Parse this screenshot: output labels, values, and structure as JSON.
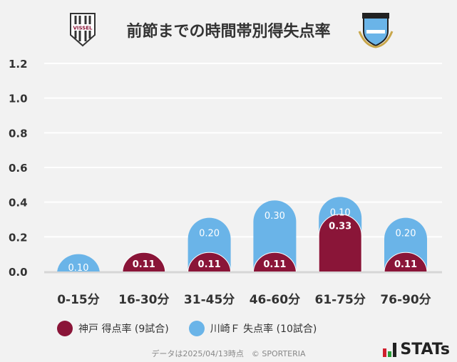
{
  "title": "前節までの時間帯別得失点率",
  "logos": {
    "left": "VISSEL",
    "right": "KAWASAKI FRONTALE"
  },
  "colors": {
    "kobe": "#8a1538",
    "kawasaki": "#6ab4e8"
  },
  "chart_data": {
    "type": "bar",
    "stacked": true,
    "categories": [
      "0-15分",
      "16-30分",
      "31-45分",
      "46-60分",
      "61-75分",
      "76-90分"
    ],
    "series": [
      {
        "name": "神戸 得点率 (9試合)",
        "values": [
          0,
          0.11,
          0.11,
          0.11,
          0.33,
          0.11
        ],
        "labels": [
          "",
          "0.11",
          "0.11",
          "0.11",
          "0.33",
          "0.11"
        ]
      },
      {
        "name": "川崎Ｆ 失点率 (10試合)",
        "values": [
          0.1,
          0,
          0.2,
          0.3,
          0.1,
          0.2
        ],
        "labels": [
          "0.10",
          "",
          "0.20",
          "0.30",
          "0.10",
          "0.20"
        ]
      }
    ],
    "ylim": [
      0,
      1.2
    ],
    "yticks": [
      "0.0",
      "0.2",
      "0.4",
      "0.6",
      "0.8",
      "1.0",
      "1.2"
    ],
    "grid": true,
    "legend": "bottom"
  },
  "footer": "データは2025/04/13時点　© SPORTERIA",
  "brand": "STATs"
}
